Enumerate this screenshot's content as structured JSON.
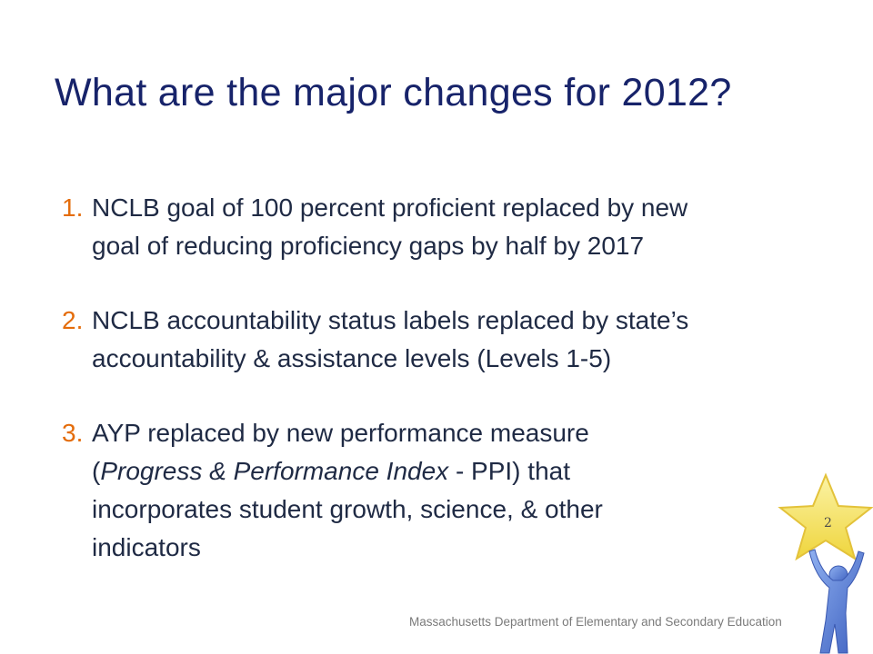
{
  "slide": {
    "title": "What are the major changes for 2012?",
    "items": [
      {
        "number": "1.",
        "lines": [
          "NCLB goal of 100 percent proficient replaced by new",
          "goal of reducing proficiency gaps by half by 2017"
        ]
      },
      {
        "number": "2.",
        "lines": [
          "NCLB accountability status labels replaced by state’s",
          "accountability & assistance levels (Levels 1-5)"
        ]
      },
      {
        "number": "3.",
        "lines": [
          "AYP replaced by new performance measure",
          "(",
          "Progress & Performance Index",
          " - PPI) that",
          "incorporates student growth, science, & other",
          "indicators"
        ]
      }
    ],
    "footer": "Massachusetts Department of Elementary and Secondary Education",
    "page_number": "2",
    "colors": {
      "title": "#17236a",
      "body_text": "#1f2a44",
      "list_number": "#e46c0a",
      "star_fill": "#f7e76b",
      "figure_fill": "#5b7fd6"
    },
    "icons": [
      "star-icon",
      "person-holding-star-icon"
    ]
  }
}
